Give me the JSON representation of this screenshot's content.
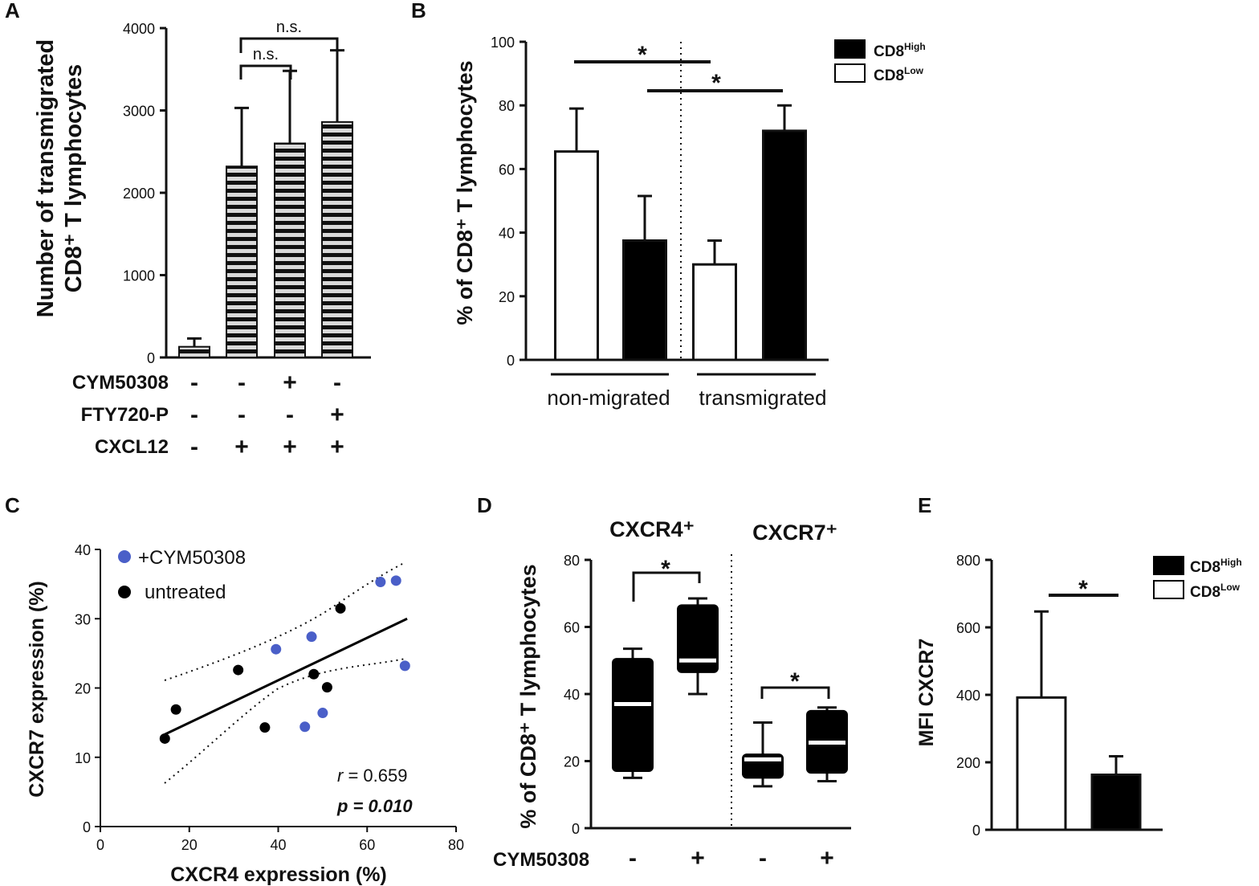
{
  "chart_data": [
    {
      "panel": "A",
      "type": "bar",
      "ylabel_line1": "Number of transmigrated",
      "ylabel_line2": "CD8⁺ T lymphocytes",
      "ylim": [
        0,
        4000
      ],
      "yticks": [
        "0",
        "1000",
        "2000",
        "3000",
        "4000"
      ],
      "values": [
        130,
        2320,
        2600,
        2860
      ],
      "errors": [
        100,
        710,
        880,
        870
      ],
      "treatment_rows": [
        {
          "label": "CYM50308",
          "signs": [
            "-",
            "-",
            "+",
            "-"
          ]
        },
        {
          "label": "FTY720-P",
          "signs": [
            "-",
            "-",
            "-",
            "+"
          ]
        },
        {
          "label": "CXCL12",
          "signs": [
            "-",
            "+",
            "+",
            "+"
          ]
        }
      ],
      "annotations": [
        "n.s.",
        "n.s."
      ],
      "fill_pattern": "horizontal-stripes",
      "colors": {
        "stripe_dark": "#111111",
        "stripe_light": "#d9d9d9"
      }
    },
    {
      "panel": "B",
      "type": "bar",
      "ylabel": "% of CD8⁺ T lymphocytes",
      "ylim": [
        0,
        100
      ],
      "yticks": [
        "0",
        "20",
        "40",
        "60",
        "80",
        "100"
      ],
      "groups": [
        "non-migrated",
        "transmigrated"
      ],
      "series": [
        {
          "name": "CD8",
          "sup": "Low",
          "color": "#ffffff",
          "values": [
            65.5,
            30
          ]
        },
        {
          "name": "CD8",
          "sup": "High",
          "color": "#000000",
          "values": [
            37.5,
            72
          ]
        }
      ],
      "errors": {
        "low": [
          13.5,
          7.5
        ],
        "high": [
          14,
          8
        ]
      },
      "significance": [
        "*",
        "*"
      ]
    },
    {
      "panel": "C",
      "type": "scatter",
      "xlabel": "CXCR4 expression (%)",
      "ylabel": "CXCR7 expression (%)",
      "xlim": [
        0,
        80
      ],
      "ylim": [
        0,
        40
      ],
      "xticks": [
        "0",
        "20",
        "40",
        "60",
        "80"
      ],
      "yticks": [
        "0",
        "10",
        "20",
        "30",
        "40"
      ],
      "series": [
        {
          "name": "+CYM50308",
          "color": "#4a5fc8",
          "points": [
            [
              39.5,
              25.6
            ],
            [
              47.5,
              27.4
            ],
            [
              46,
              14.4
            ],
            [
              50,
              16.4
            ],
            [
              63,
              35.3
            ],
            [
              66.5,
              35.5
            ],
            [
              68.5,
              23.2
            ]
          ]
        },
        {
          "name": "untreated",
          "color": "#000000",
          "points": [
            [
              14.5,
              12.7
            ],
            [
              17,
              16.9
            ],
            [
              31,
              22.6
            ],
            [
              37,
              14.3
            ],
            [
              48,
              22
            ],
            [
              51,
              20.1
            ],
            [
              54,
              31.5
            ]
          ]
        }
      ],
      "fit": {
        "x": [
          14.5,
          69
        ],
        "y": [
          13.3,
          30.0
        ]
      },
      "r_label": "r",
      "r_value": " = 0.659",
      "p_label": "p = 0.010"
    },
    {
      "panel": "D",
      "type": "box",
      "ylabel": "% of CD8⁺ T lymphocytes",
      "ylim": [
        0,
        80
      ],
      "yticks": [
        "0",
        "20",
        "40",
        "60",
        "80"
      ],
      "groups": [
        "CXCR4⁺",
        "CXCR7⁺"
      ],
      "treatment_label": "CYM50308",
      "treatment_signs": [
        "-",
        "+",
        "-",
        "+"
      ],
      "boxes": [
        {
          "min": 15,
          "q1": 17,
          "median": 37,
          "q3": 50.5,
          "max": 53.5
        },
        {
          "min": 40,
          "q1": 46.5,
          "median": 50,
          "q3": 66.5,
          "max": 68.5
        },
        {
          "min": 12.5,
          "q1": 15,
          "median": 20.5,
          "q3": 22,
          "max": 31.5
        },
        {
          "min": 14,
          "q1": 16.5,
          "median": 25.5,
          "q3": 35,
          "max": 36
        }
      ],
      "significance": [
        "*",
        "*"
      ]
    },
    {
      "panel": "E",
      "type": "bar",
      "ylabel": "MFI CXCR7",
      "ylim": [
        0,
        800
      ],
      "yticks": [
        "0",
        "200",
        "400",
        "600",
        "800"
      ],
      "series": [
        {
          "name": "CD8",
          "sup": "Low",
          "color": "#ffffff",
          "value": 392,
          "error": 255
        },
        {
          "name": "CD8",
          "sup": "High",
          "color": "#000000",
          "value": 163,
          "error": 55
        }
      ],
      "significance": [
        "*"
      ]
    }
  ]
}
